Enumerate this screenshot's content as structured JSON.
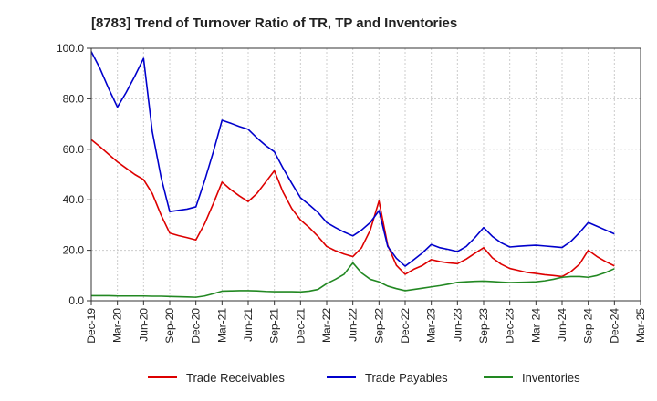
{
  "chart_data": {
    "type": "line",
    "title": "[8783]  Trend of Turnover Ratio of TR, TP and Inventories",
    "xlabel": "",
    "ylabel": "",
    "ylim": [
      0,
      100
    ],
    "y_ticks": [
      "0.0",
      "20.0",
      "40.0",
      "60.0",
      "80.0",
      "100.0"
    ],
    "x_ticks": [
      "Dec-19",
      "Mar-20",
      "Jun-20",
      "Sep-20",
      "Dec-20",
      "Mar-21",
      "Jun-21",
      "Sep-21",
      "Dec-21",
      "Mar-22",
      "Jun-22",
      "Sep-22",
      "Dec-22",
      "Mar-23",
      "Jun-23",
      "Sep-23",
      "Dec-23",
      "Mar-24",
      "Jun-24",
      "Sep-24",
      "Dec-24",
      "Mar-25"
    ],
    "x": [
      "Dec-19",
      "Jan-20",
      "Feb-20",
      "Mar-20",
      "Apr-20",
      "May-20",
      "Jun-20",
      "Jul-20",
      "Aug-20",
      "Sep-20",
      "Oct-20",
      "Nov-20",
      "Dec-20",
      "Jan-21",
      "Feb-21",
      "Mar-21",
      "Apr-21",
      "May-21",
      "Jun-21",
      "Jul-21",
      "Aug-21",
      "Sep-21",
      "Oct-21",
      "Nov-21",
      "Dec-21",
      "Jan-22",
      "Feb-22",
      "Mar-22",
      "Apr-22",
      "May-22",
      "Jun-22",
      "Jul-22",
      "Aug-22",
      "Sep-22",
      "Oct-22",
      "Nov-22",
      "Dec-22",
      "Jan-23",
      "Feb-23",
      "Mar-23",
      "Apr-23",
      "May-23",
      "Jun-23",
      "Jul-23",
      "Aug-23",
      "Sep-23",
      "Oct-23",
      "Nov-23",
      "Dec-23",
      "Jan-24",
      "Feb-24",
      "Mar-24",
      "Apr-24",
      "May-24",
      "Jun-24",
      "Jul-24",
      "Aug-24",
      "Sep-24",
      "Oct-24",
      "Nov-24",
      "Dec-24"
    ],
    "grid": true,
    "legend": "bottom",
    "series": [
      {
        "name": "Trade Receivables",
        "color": "#dd0000",
        "values": [
          63.8,
          61.0,
          58.0,
          55.0,
          52.5,
          50.0,
          48.0,
          42.5,
          34.0,
          26.8,
          25.8,
          25.0,
          24.1,
          30.5,
          38.5,
          47.0,
          44.0,
          41.5,
          39.3,
          42.5,
          47.0,
          51.5,
          43.0,
          36.5,
          32.0,
          29.0,
          25.5,
          21.5,
          19.8,
          18.5,
          17.5,
          21.0,
          28.0,
          39.5,
          22.0,
          14.0,
          10.5,
          12.5,
          14.0,
          16.3,
          15.5,
          15.0,
          14.7,
          16.5,
          18.8,
          21.0,
          17.0,
          14.5,
          12.8,
          12.0,
          11.2,
          10.8,
          10.3,
          10.0,
          9.6,
          11.5,
          14.5,
          20.0,
          17.5,
          15.5,
          13.8
        ]
      },
      {
        "name": "Trade Payables",
        "color": "#0000cc",
        "values": [
          98.7,
          92.0,
          84.0,
          76.7,
          82.5,
          89.0,
          96.0,
          67.0,
          49.0,
          35.3,
          35.8,
          36.3,
          37.2,
          47.5,
          59.0,
          71.5,
          70.3,
          69.0,
          67.9,
          64.5,
          61.5,
          59.0,
          52.5,
          46.5,
          40.8,
          38.0,
          35.0,
          31.0,
          29.0,
          27.2,
          25.7,
          28.0,
          31.0,
          35.7,
          21.5,
          16.8,
          13.7,
          16.3,
          19.0,
          22.3,
          21.0,
          20.3,
          19.5,
          21.5,
          25.0,
          29.0,
          25.5,
          23.0,
          21.3,
          21.6,
          21.8,
          22.0,
          21.7,
          21.4,
          21.1,
          23.5,
          27.0,
          31.0,
          29.5,
          28.0,
          26.5
        ]
      },
      {
        "name": "Inventories",
        "color": "#228822",
        "values": [
          2.0,
          2.0,
          2.0,
          1.9,
          1.9,
          1.9,
          1.9,
          1.8,
          1.8,
          1.7,
          1.6,
          1.5,
          1.4,
          1.9,
          2.8,
          3.8,
          3.9,
          4.0,
          4.0,
          3.9,
          3.7,
          3.6,
          3.6,
          3.6,
          3.5,
          3.8,
          4.5,
          6.8,
          8.5,
          10.5,
          15.0,
          11.0,
          8.5,
          7.5,
          5.8,
          4.8,
          4.0,
          4.5,
          5.0,
          5.5,
          6.0,
          6.6,
          7.3,
          7.5,
          7.7,
          7.8,
          7.6,
          7.4,
          7.2,
          7.3,
          7.4,
          7.5,
          7.9,
          8.5,
          9.3,
          9.6,
          9.6,
          9.3,
          10.0,
          11.2,
          12.7
        ]
      }
    ]
  }
}
